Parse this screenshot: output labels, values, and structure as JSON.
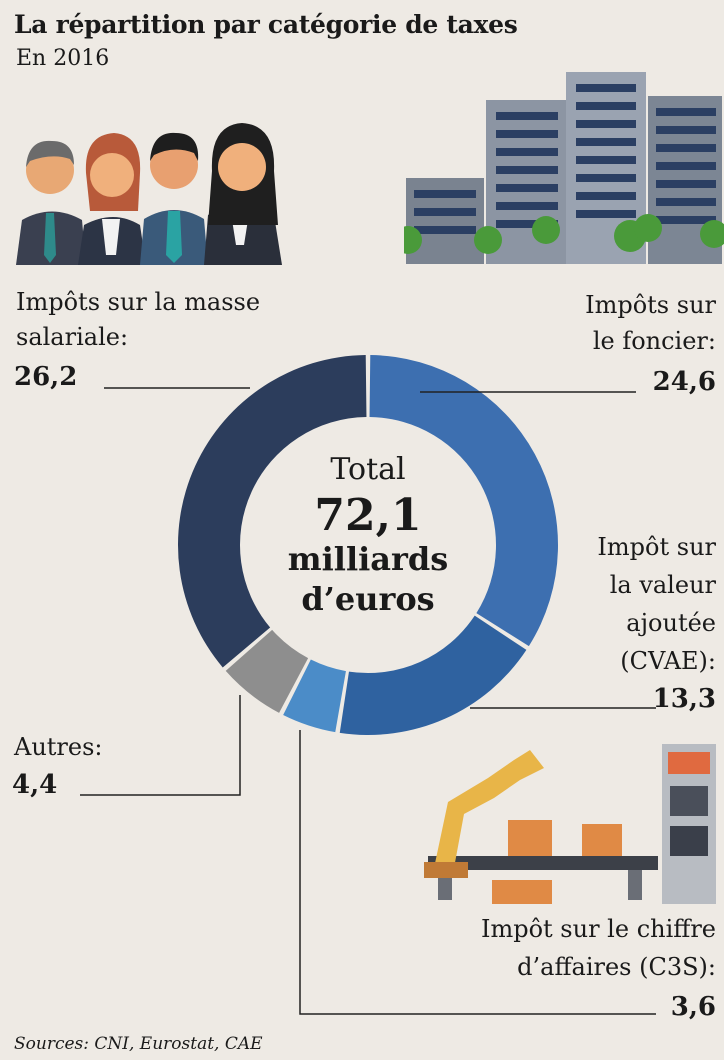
{
  "title": "La répartition par catégorie de taxes",
  "subtitle": "En 2016",
  "source": "Sources: CNI, Eurostat, CAE",
  "colors": {
    "salariale": "#2c3d5c",
    "foncier": "#3d6fb0",
    "cvae": "#2f62a0",
    "c3s": "#4b8cc8",
    "autres": "#8e8e8e"
  },
  "center": {
    "line1": "Total",
    "line2": "72,1",
    "line3": "milliards",
    "line4": "d’euros"
  },
  "labels": {
    "salariale_l1": "Impôts sur la masse",
    "salariale_l2": "salariale:",
    "salariale_v": "26,2",
    "foncier_l1": "Impôts sur",
    "foncier_l2": "le foncier:",
    "foncier_v": "24,6",
    "cvae_l1": "Impôt sur",
    "cvae_l2": "la valeur",
    "cvae_l3": "ajoutée",
    "cvae_l4": "(CVAE):",
    "cvae_v": "13,3",
    "autres_l1": "Autres:",
    "autres_v": "4,4",
    "c3s_l1": "Impôt sur le chiffre",
    "c3s_l2": "d’affaires (C3S):",
    "c3s_v": "3,6"
  },
  "chart_data": {
    "type": "pie",
    "title": "La répartition par catégorie de taxes",
    "subtitle": "En 2016",
    "unit": "milliards d’euros",
    "total": 72.1,
    "categories": [
      "Impôts sur le foncier",
      "Impôt sur la valeur ajoutée (CVAE)",
      "Impôt sur le chiffre d’affaires (C3S)",
      "Autres",
      "Impôts sur la masse salariale"
    ],
    "values": [
      24.6,
      13.3,
      3.6,
      4.4,
      26.2
    ],
    "colors": [
      "#3d6fb0",
      "#2f62a0",
      "#4b8cc8",
      "#8e8e8e",
      "#2c3d5c"
    ]
  }
}
